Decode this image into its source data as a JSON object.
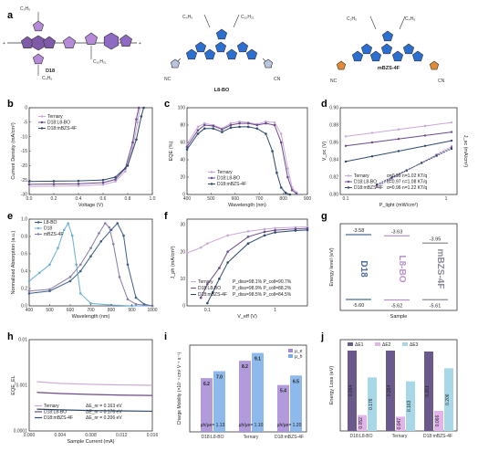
{
  "panels": {
    "a": {
      "label": "a",
      "molecules": [
        "D18",
        "L8-BO",
        "mBZS-4F"
      ]
    },
    "b": {
      "label": "b"
    },
    "c": {
      "label": "c"
    },
    "d": {
      "label": "d"
    },
    "e": {
      "label": "e"
    },
    "f": {
      "label": "f"
    },
    "g": {
      "label": "g"
    },
    "h": {
      "label": "h"
    },
    "i": {
      "label": "i"
    },
    "j": {
      "label": "j"
    }
  },
  "colors": {
    "ternary": "#c8a8d8",
    "d18l8bo": "#6a4a8c",
    "d18mbzs": "#2d4a6e",
    "d18": "#6aaed6",
    "l8bo": "#3b5f8a",
    "mbzs": "#8a7aa8"
  },
  "watermark": "",
  "chart_data": [
    {
      "panel": "b",
      "type": "line",
      "xlabel": "Voltage (V)",
      "ylabel": "Current Density (mA/cm²)",
      "xlim": [
        0,
        1.0
      ],
      "ylim": [
        -30,
        0
      ],
      "xticks": [
        "0.0",
        "0.2",
        "0.4",
        "0.6",
        "0.8",
        "1.0"
      ],
      "yticks": [
        "-30",
        "-25",
        "-20",
        "-15",
        "-10",
        "-5",
        "0"
      ],
      "series": [
        {
          "name": "Ternary",
          "color": "#c8a8d8",
          "x": [
            0,
            0.2,
            0.4,
            0.6,
            0.7,
            0.78,
            0.84,
            0.88,
            0.9
          ],
          "y": [
            -27.2,
            -27.1,
            -27.0,
            -26.6,
            -25.5,
            -22,
            -14,
            -5,
            0
          ]
        },
        {
          "name": "D18:L8-BO",
          "color": "#6a4a8c",
          "x": [
            0,
            0.2,
            0.4,
            0.6,
            0.7,
            0.78,
            0.84,
            0.87,
            0.89
          ],
          "y": [
            -26.5,
            -26.4,
            -26.3,
            -25.9,
            -24.8,
            -21,
            -12,
            -4,
            0
          ]
        },
        {
          "name": "D18:mBZS-4F",
          "color": "#2d4a6e",
          "x": [
            0,
            0.2,
            0.4,
            0.6,
            0.7,
            0.8,
            0.87,
            0.91,
            0.93
          ],
          "y": [
            -25.5,
            -25.4,
            -25.3,
            -25.0,
            -24.0,
            -20,
            -11,
            -3,
            0
          ]
        }
      ]
    },
    {
      "panel": "c",
      "type": "line",
      "xlabel": "Wavelength (nm)",
      "ylabel": "EQE (%)",
      "xlim": [
        400,
        950
      ],
      "ylim": [
        0,
        100
      ],
      "xticks": [
        "400",
        "500",
        "600",
        "700",
        "800",
        "900"
      ],
      "yticks": [
        "0",
        "20",
        "40",
        "60",
        "80",
        "100"
      ],
      "series": [
        {
          "name": "Ternary",
          "color": "#c8a8d8",
          "x": [
            400,
            450,
            480,
            520,
            560,
            600,
            640,
            680,
            720,
            760,
            800,
            830,
            860,
            880,
            900
          ],
          "y": [
            58,
            78,
            82,
            80,
            76,
            82,
            84,
            83,
            81,
            84,
            83,
            70,
            30,
            8,
            2
          ]
        },
        {
          "name": "D18:L8-BO",
          "color": "#6a4a8c",
          "x": [
            400,
            450,
            480,
            520,
            560,
            600,
            640,
            680,
            720,
            760,
            800,
            830,
            860,
            880,
            900
          ],
          "y": [
            55,
            74,
            80,
            79,
            75,
            80,
            82,
            82,
            80,
            82,
            80,
            60,
            20,
            5,
            1
          ]
        },
        {
          "name": "D18:mBZS-4F",
          "color": "#2d4a6e",
          "x": [
            400,
            450,
            480,
            520,
            560,
            600,
            640,
            680,
            720,
            760,
            790,
            810,
            830,
            850,
            870
          ],
          "y": [
            52,
            70,
            76,
            76,
            72,
            77,
            78,
            78,
            76,
            70,
            50,
            25,
            8,
            2,
            0
          ]
        }
      ]
    },
    {
      "panel": "d",
      "type": "line",
      "xlabel": "P_light (mW/cm²)",
      "ylabel_left": "V_oc (V)",
      "ylabel_right": "J_sc (mA/cm²)",
      "xlim": [
        0.1,
        1
      ],
      "ylim": [
        0.8,
        0.9
      ],
      "yticks": [
        "0.80",
        "0.82",
        "0.84",
        "0.86",
        "0.88",
        "0.90"
      ],
      "xticks": [
        "0.1",
        "1"
      ],
      "series": [
        {
          "name": "Ternary",
          "color": "#c8a8d8",
          "label": "α=0.99  n=1.02 KT/q",
          "voc": [
            0.867,
            0.883
          ],
          "jsc": [
            0.805,
            0.888
          ]
        },
        {
          "name": "D18:L8-BO",
          "color": "#6a4a8c",
          "label": "α=0.97  n=1.08 KT/q",
          "voc": [
            0.856,
            0.872
          ],
          "jsc": [
            0.803,
            0.884
          ]
        },
        {
          "name": "D18:mBZS-4F",
          "color": "#2d4a6e",
          "label": "α=0.96  n=1.22 KT/q",
          "voc": [
            0.838,
            0.862
          ],
          "jsc": [
            0.801,
            0.878
          ]
        }
      ]
    },
    {
      "panel": "e",
      "type": "line",
      "xlabel": "Wavelength (nm)",
      "ylabel": "Normalized Absorption (a.u.)",
      "xlim": [
        400,
        1000
      ],
      "ylim": [
        0,
        1.05
      ],
      "xticks": [
        "400",
        "500",
        "600",
        "700",
        "800",
        "900",
        "1000"
      ],
      "yticks": [
        "0.0",
        "0.2",
        "0.4",
        "0.6",
        "0.8",
        "1.0"
      ],
      "series": [
        {
          "name": "L8-BO",
          "color": "#3b5f8a",
          "x": [
            400,
            500,
            600,
            650,
            700,
            750,
            800,
            830,
            860,
            880,
            920,
            960,
            1000
          ],
          "y": [
            0.15,
            0.18,
            0.3,
            0.42,
            0.6,
            0.78,
            0.92,
            1.0,
            0.85,
            0.5,
            0.1,
            0.02,
            0.0
          ]
        },
        {
          "name": "D18",
          "color": "#6aaed6",
          "x": [
            400,
            450,
            500,
            540,
            570,
            590,
            610,
            630,
            650,
            700,
            800,
            900,
            1000
          ],
          "y": [
            0.3,
            0.4,
            0.5,
            0.7,
            0.92,
            1.0,
            0.85,
            0.5,
            0.15,
            0.03,
            0.01,
            0,
            0
          ]
        },
        {
          "name": "mBZS-4F",
          "color": "#8a7aa8",
          "x": [
            400,
            500,
            600,
            650,
            700,
            740,
            770,
            790,
            810,
            840,
            880,
            920,
            1000
          ],
          "y": [
            0.18,
            0.2,
            0.35,
            0.5,
            0.7,
            0.88,
            1.0,
            0.95,
            0.75,
            0.35,
            0.08,
            0.02,
            0
          ]
        }
      ]
    },
    {
      "panel": "f",
      "type": "line",
      "xlabel": "V_eff (V)",
      "ylabel": "J_ph (mA/cm²)",
      "xlim": [
        0.05,
        3
      ],
      "ylim": [
        0,
        32
      ],
      "xticks": [
        "0.1",
        "1"
      ],
      "yticks": [
        "0",
        "10",
        "20",
        "30"
      ],
      "series": [
        {
          "name": "Ternary",
          "color": "#c8a8d8",
          "label": "P_diss=98.1%  P_coll=90.7%",
          "x": [
            0.05,
            0.08,
            0.1,
            0.2,
            0.4,
            0.7,
            1,
            2,
            3
          ],
          "y": [
            19.5,
            21.5,
            23,
            26,
            27.5,
            28.3,
            28.7,
            29,
            29.2
          ]
        },
        {
          "name": "D18:L8-BO",
          "color": "#6a4a8c",
          "label": "P_diss=98.9%  P_coll=88.2%",
          "x": [
            0.08,
            0.1,
            0.15,
            0.2,
            0.4,
            0.7,
            1,
            2,
            3
          ],
          "y": [
            3,
            8,
            14,
            20,
            25.5,
            27.3,
            27.9,
            28.4,
            28.6
          ]
        },
        {
          "name": "D18:mBZS-4F",
          "color": "#2d4a6e",
          "label": "P_diss=98.5%  P_coll=84.5%",
          "x": [
            0.1,
            0.12,
            0.15,
            0.2,
            0.4,
            0.7,
            1,
            2,
            3
          ],
          "y": [
            1,
            5,
            10,
            16,
            23,
            26,
            27.1,
            27.8,
            28
          ]
        }
      ]
    },
    {
      "panel": "g",
      "type": "bar",
      "xlabel": "Sample",
      "ylabel": "Energy level (eV)",
      "categories": [
        "D18",
        "L8-BO",
        "mBZS-4F"
      ],
      "homo": [
        -5.6,
        -5.62,
        -5.61
      ],
      "lumo": [
        -3.58,
        -3.63,
        -3.95
      ],
      "homo_labels": [
        "-5.60",
        "-5.62",
        "-5.61"
      ],
      "lumo_labels": [
        "-3.58",
        "-3.63",
        "-3.95"
      ]
    },
    {
      "panel": "h",
      "type": "line",
      "xlabel": "Sample Current (mA)",
      "ylabel": "EQE_EL",
      "xlim": [
        0,
        0.016
      ],
      "xticks": [
        "0.000",
        "0.004",
        "0.008",
        "0.012",
        "0.016"
      ],
      "yticks": [
        "0.0001",
        "0.001",
        "0.01"
      ],
      "series": [
        {
          "name": "Ternary",
          "color": "#c8a8d8",
          "label": "ΔE_nr = 0.163 eV",
          "x": [
            0.001,
            0.004,
            0.008,
            0.012,
            0.016
          ],
          "y": [
            0.0012,
            0.0011,
            0.00105,
            0.00102,
            0.001
          ]
        },
        {
          "name": "D18:L8-BO",
          "color": "#6a4a8c",
          "label": "ΔE_nr = 0.176 eV",
          "x": [
            0.001,
            0.004,
            0.008,
            0.012,
            0.016
          ],
          "y": [
            0.0007,
            0.00066,
            0.00063,
            0.00061,
            0.0006
          ]
        },
        {
          "name": "D18:mBZS-4F",
          "color": "#2d4a6e",
          "label": "ΔE_nr = 0.206 eV",
          "x": [
            0.001,
            0.004,
            0.008,
            0.012,
            0.016
          ],
          "y": [
            0.0003,
            0.00029,
            0.00028,
            0.000275,
            0.00027
          ]
        }
      ]
    },
    {
      "panel": "i",
      "type": "bar",
      "xlabel": "",
      "ylabel": "Charge Mobility (×10⁻⁴ cm² V⁻¹ s⁻¹)",
      "categories": [
        "D18:L8-BO",
        "Ternary",
        "D18:mBZS-4F"
      ],
      "series": [
        {
          "name": "μ_e",
          "values": [
            6.2,
            8.2,
            5.4
          ],
          "color": "#a58ad6"
        },
        {
          "name": "μ_h",
          "values": [
            7.0,
            9.1,
            6.5
          ],
          "color": "#7aaee8"
        }
      ],
      "ratio_labels": [
        "μh/μe= 1.13",
        "μh/μe= 1.10",
        "μh/μe= 1.20"
      ],
      "value_labels": [
        [
          "6.2",
          "7.0"
        ],
        [
          "8.2",
          "9.1"
        ],
        [
          "5.4",
          "6.5"
        ]
      ],
      "ylim": [
        0,
        10
      ]
    },
    {
      "panel": "j",
      "type": "bar",
      "xlabel": "",
      "ylabel": "Energy Loss (eV)",
      "categories": [
        "D18:L8-BO",
        "Ternary",
        "D18:mBZS-4F"
      ],
      "legend": [
        "ΔE1",
        "ΔE2",
        "ΔE3"
      ],
      "values": [
        [
          0.264,
          0.052,
          0.176
        ],
        [
          0.264,
          0.047,
          0.163
        ],
        [
          0.261,
          0.066,
          0.206
        ]
      ],
      "value_labels": [
        [
          "0.264",
          "0.052",
          "0.176"
        ],
        [
          "0.264",
          "0.047",
          "0.163"
        ],
        [
          "0.261",
          "0.066",
          "0.206"
        ]
      ],
      "ylim": [
        0,
        0.3
      ]
    }
  ]
}
